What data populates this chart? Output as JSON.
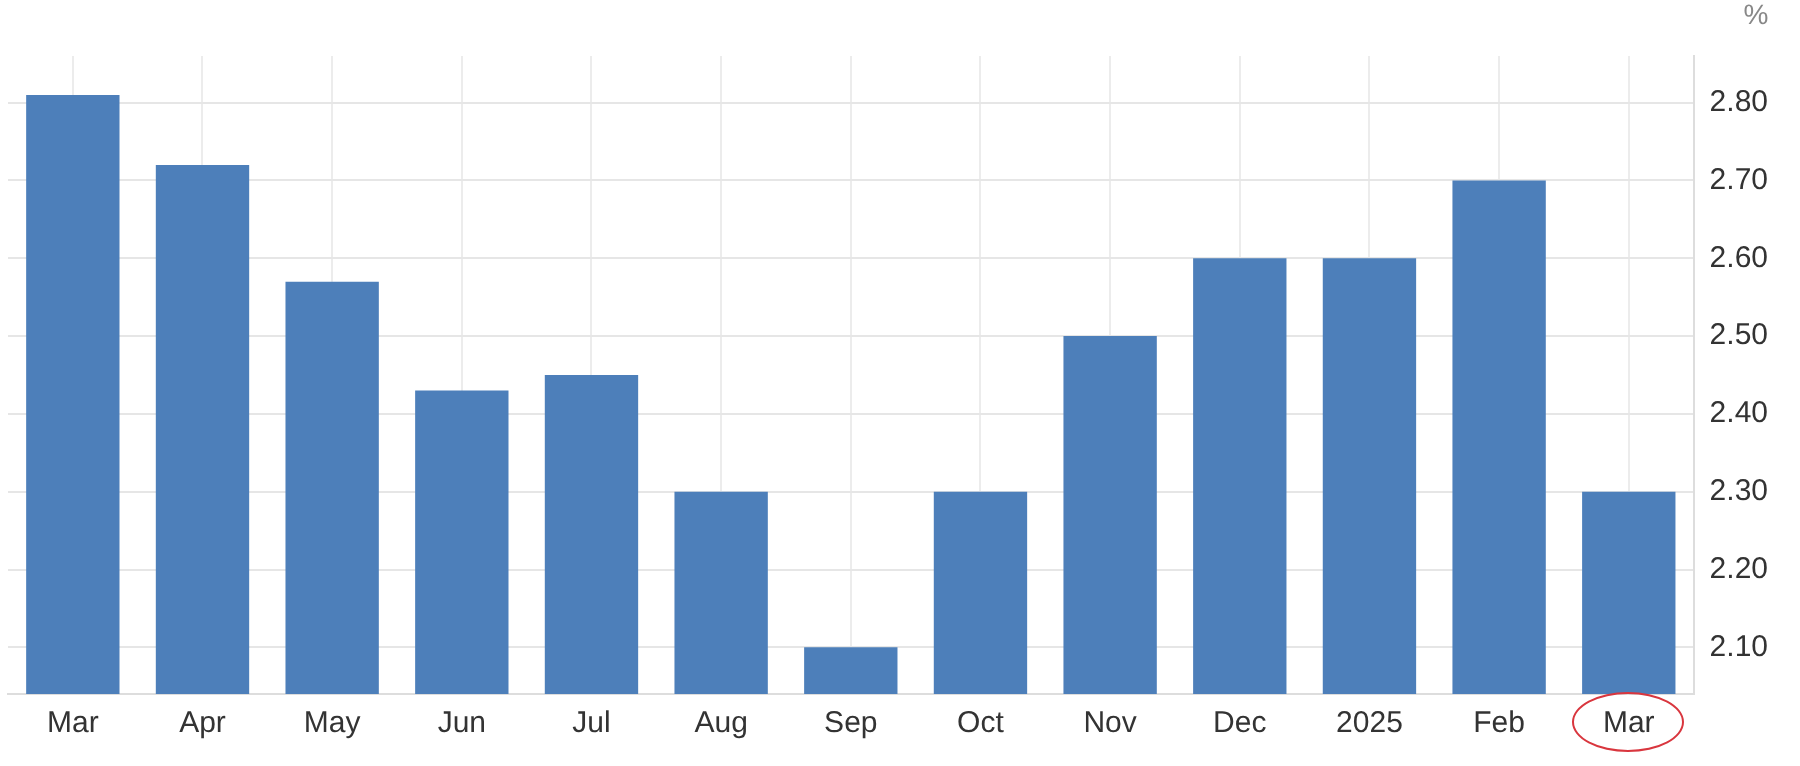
{
  "chart_data": {
    "type": "bar",
    "ylabel": "%",
    "categories": [
      "Mar",
      "Apr",
      "May",
      "Jun",
      "Jul",
      "Aug",
      "Sep",
      "Oct",
      "Nov",
      "Dec",
      "2025",
      "Feb",
      "Mar"
    ],
    "values": [
      2.81,
      2.72,
      2.57,
      2.43,
      2.45,
      2.3,
      2.1,
      2.3,
      2.5,
      2.6,
      2.6,
      2.7,
      2.3
    ],
    "color": "#4d7fba",
    "ylim": [
      2.04,
      2.86
    ],
    "yticks": [
      {
        "value": 2.1,
        "label": "2.10"
      },
      {
        "value": 2.2,
        "label": "2.20"
      },
      {
        "value": 2.3,
        "label": "2.30"
      },
      {
        "value": 2.4,
        "label": "2.40"
      },
      {
        "value": 2.5,
        "label": "2.50"
      },
      {
        "value": 2.6,
        "label": "2.60"
      },
      {
        "value": 2.7,
        "label": "2.70"
      },
      {
        "value": 2.8,
        "label": "2.80"
      }
    ],
    "grid": true,
    "legend": false
  }
}
